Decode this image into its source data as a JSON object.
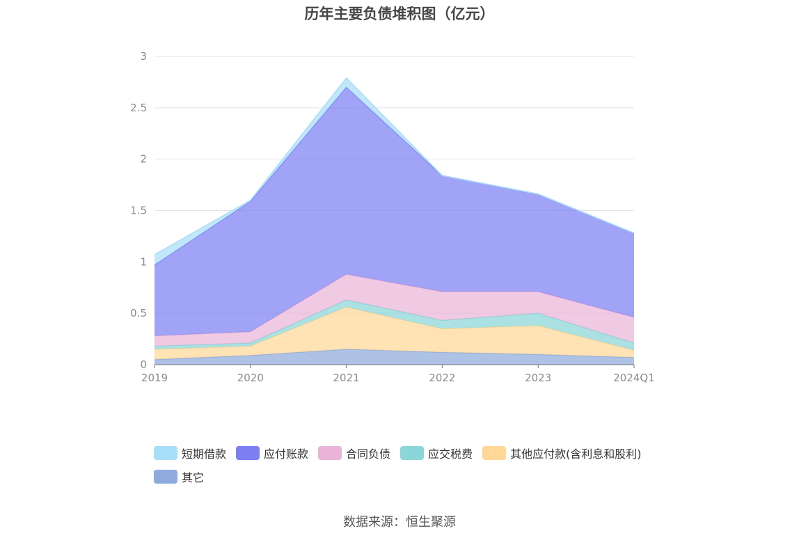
{
  "chart_data": {
    "type": "area",
    "stacked": true,
    "title": "历年主要负债堆积图（亿元）",
    "x": [
      "2019",
      "2020",
      "2021",
      "2022",
      "2023",
      "2024Q1"
    ],
    "ylim": [
      0,
      3
    ],
    "yticks": [
      "0",
      "0.5",
      "1",
      "1.5",
      "2",
      "2.5",
      "3"
    ],
    "grid": true,
    "legend_position": "bottom",
    "series": [
      {
        "name": "其它",
        "color": "#8faadc",
        "values": [
          0.05,
          0.09,
          0.15,
          0.12,
          0.1,
          0.07
        ]
      },
      {
        "name": "其他应付款(含利息和股利)",
        "color": "#ffd898",
        "values": [
          0.1,
          0.09,
          0.41,
          0.23,
          0.28,
          0.07
        ]
      },
      {
        "name": "应交税费",
        "color": "#8ad6d8",
        "values": [
          0.03,
          0.03,
          0.07,
          0.08,
          0.12,
          0.07
        ]
      },
      {
        "name": "合同负债",
        "color": "#eab4d8",
        "values": [
          0.1,
          0.11,
          0.25,
          0.28,
          0.21,
          0.25
        ]
      },
      {
        "name": "应付账款",
        "color": "#7b7ff2",
        "values": [
          0.69,
          1.27,
          1.82,
          1.13,
          0.95,
          0.82
        ]
      },
      {
        "name": "短期借款",
        "color": "#a9def8",
        "values": [
          0.1,
          0.01,
          0.09,
          0.0,
          0.0,
          0.0
        ]
      }
    ]
  },
  "legend_order": [
    {
      "name": "短期借款",
      "color": "#a9def8"
    },
    {
      "name": "应付账款",
      "color": "#7b7ff2"
    },
    {
      "name": "合同负债",
      "color": "#eab4d8"
    },
    {
      "name": "应交税费",
      "color": "#8ad6d8"
    },
    {
      "name": "其他应付款(含利息和股利)",
      "color": "#ffd898"
    },
    {
      "name": "其它",
      "color": "#8faadc"
    }
  ],
  "source": "数据来源：恒生聚源"
}
